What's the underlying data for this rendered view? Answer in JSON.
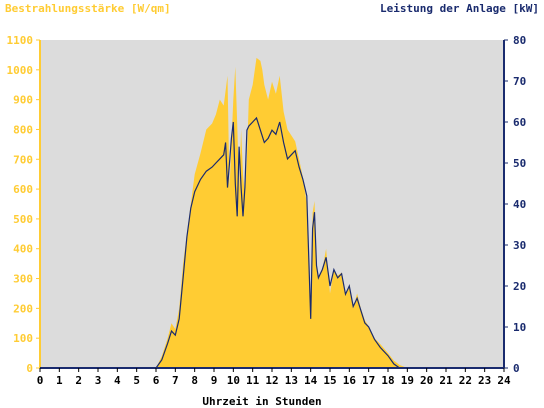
{
  "chart_data": {
    "type": "area",
    "left_axis_label": "Bestrahlungsstärke [W/qm]",
    "right_axis_label": "Leistung der Anlage [kW]",
    "xlabel": "Uhrzeit in Stunden",
    "xlim": [
      0,
      24
    ],
    "x_ticks": [
      0,
      1,
      2,
      3,
      4,
      5,
      6,
      7,
      8,
      9,
      10,
      11,
      12,
      13,
      14,
      15,
      16,
      17,
      18,
      19,
      20,
      21,
      22,
      23,
      24
    ],
    "left_ylim": [
      0,
      1100
    ],
    "left_ticks": [
      0,
      100,
      200,
      300,
      400,
      500,
      600,
      700,
      800,
      900,
      1000,
      1100
    ],
    "right_ylim": [
      0,
      80
    ],
    "right_ticks": [
      0,
      10,
      20,
      30,
      40,
      50,
      60,
      70,
      80
    ],
    "colors": {
      "irradiance_fill": "#ffcc33",
      "power_line": "#1a2b6e",
      "plot_background": "#dcdcdc",
      "left_axis": "#ffcc33",
      "right_axis": "#1a2b6e",
      "tick_text": "#000000"
    },
    "series": [
      {
        "axis": "left",
        "style": "filled-area",
        "x": [
          0,
          6.0,
          6.3,
          6.6,
          6.8,
          7.0,
          7.2,
          7.4,
          7.6,
          7.8,
          8.0,
          8.3,
          8.6,
          8.9,
          9.1,
          9.3,
          9.5,
          9.7,
          9.8,
          9.9,
          10.0,
          10.1,
          10.2,
          10.3,
          10.4,
          10.5,
          10.6,
          10.7,
          10.8,
          11.0,
          11.2,
          11.4,
          11.5,
          11.6,
          11.8,
          12.0,
          12.2,
          12.4,
          12.6,
          12.8,
          13.0,
          13.2,
          13.4,
          13.6,
          13.8,
          14.0,
          14.1,
          14.2,
          14.3,
          14.4,
          14.6,
          14.8,
          15.0,
          15.2,
          15.4,
          15.6,
          15.8,
          16.0,
          16.2,
          16.4,
          16.6,
          16.8,
          17.0,
          17.3,
          17.6,
          18.0,
          18.3,
          18.6,
          19.0,
          24
        ],
        "values": [
          0,
          0,
          40,
          100,
          150,
          130,
          200,
          350,
          450,
          550,
          650,
          720,
          800,
          820,
          850,
          900,
          880,
          980,
          600,
          750,
          900,
          1010,
          820,
          600,
          800,
          650,
          580,
          700,
          900,
          950,
          1040,
          1030,
          1000,
          950,
          900,
          960,
          920,
          980,
          860,
          800,
          780,
          760,
          700,
          640,
          550,
          200,
          520,
          560,
          350,
          300,
          330,
          400,
          250,
          330,
          310,
          320,
          250,
          270,
          200,
          250,
          200,
          160,
          140,
          100,
          80,
          50,
          25,
          10,
          0,
          0
        ]
      },
      {
        "axis": "right",
        "style": "line",
        "x": [
          0,
          6.0,
          6.3,
          6.6,
          6.8,
          7.0,
          7.2,
          7.4,
          7.6,
          7.8,
          8.0,
          8.3,
          8.6,
          8.9,
          9.1,
          9.3,
          9.5,
          9.6,
          9.7,
          9.8,
          9.9,
          10.0,
          10.1,
          10.2,
          10.3,
          10.4,
          10.5,
          10.6,
          10.7,
          10.8,
          11.0,
          11.2,
          11.4,
          11.6,
          11.8,
          12.0,
          12.2,
          12.4,
          12.6,
          12.8,
          13.0,
          13.2,
          13.4,
          13.6,
          13.8,
          14.0,
          14.1,
          14.2,
          14.3,
          14.4,
          14.6,
          14.8,
          15.0,
          15.2,
          15.4,
          15.6,
          15.8,
          16.0,
          16.2,
          16.4,
          16.6,
          16.8,
          17.0,
          17.3,
          17.6,
          18.0,
          18.3,
          18.6,
          19.0,
          24
        ],
        "values": [
          0,
          0,
          2,
          6,
          9,
          8,
          12,
          22,
          32,
          39,
          43,
          46,
          48,
          49,
          50,
          51,
          52,
          55,
          44,
          50,
          56,
          60,
          45,
          37,
          54,
          44,
          37,
          44,
          58,
          59,
          60,
          61,
          58,
          55,
          56,
          58,
          57,
          60,
          55,
          51,
          52,
          53,
          49,
          46,
          42,
          12,
          34,
          38,
          25,
          22,
          24,
          27,
          20,
          24,
          22,
          23,
          18,
          20,
          15,
          17,
          14,
          11,
          10,
          7,
          5,
          3,
          1,
          0,
          0,
          0
        ]
      }
    ]
  }
}
